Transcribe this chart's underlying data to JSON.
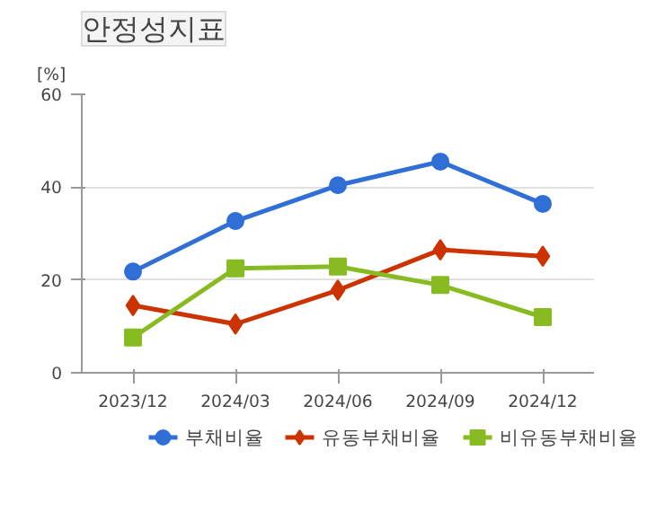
{
  "chart_data": {
    "type": "line",
    "title": "안정성지표",
    "ylabel": "[%]",
    "categories": [
      "2023/12",
      "2024/03",
      "2024/06",
      "2024/09",
      "2024/12"
    ],
    "series": [
      {
        "name": "부채비율",
        "color": "#2f6fd6",
        "marker": "circle",
        "values": [
          21.8,
          32.7,
          40.4,
          45.5,
          36.4
        ]
      },
      {
        "name": "유동부채비율",
        "color": "#cc3300",
        "marker": "diamond",
        "values": [
          14.5,
          10.5,
          17.8,
          26.5,
          25.1
        ]
      },
      {
        "name": "비유동부채비율",
        "color": "#88bb22",
        "marker": "square",
        "values": [
          7.6,
          22.5,
          22.9,
          18.9,
          12
        ]
      }
    ],
    "ylim": [
      0,
      60
    ],
    "yticks": [
      0,
      20,
      40,
      60
    ],
    "grid": "y",
    "legend": "bottom"
  }
}
